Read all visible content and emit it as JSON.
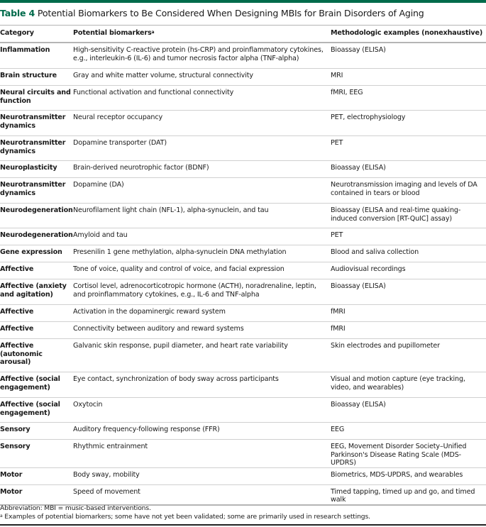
{
  "title": {
    "label": "Table 4",
    "text": "Potential Biomarkers to Be Considered When Designing MBIs for Brain Disorders of Aging"
  },
  "colors": {
    "accent": "#006b4b"
  },
  "headers": {
    "category": "Category",
    "biomarkers": "Potential biomarkers",
    "biomarkers_sup": "a",
    "methods": "Methodologic examples (nonexhaustive)"
  },
  "rows": [
    {
      "category": "Inflammation",
      "biomarker": "High-sensitivity C-reactive protein (hs-CRP) and proinflammatory cytokines, e.g., interleukin-6 (IL-6) and tumor necrosis factor alpha (TNF-alpha)",
      "method": "Bioassay (ELISA)"
    },
    {
      "category": "Brain structure",
      "biomarker": "Gray and white matter volume, structural connectivity",
      "method": "MRI"
    },
    {
      "category": "Neural circuits and function",
      "biomarker": "Functional activation and functional connectivity",
      "method": "fMRI, EEG"
    },
    {
      "category": "Neurotransmitter dynamics",
      "biomarker": "Neural receptor occupancy",
      "method": "PET, electrophysiology"
    },
    {
      "category": "Neurotransmitter dynamics",
      "biomarker": "Dopamine transporter (DAT)",
      "method": "PET"
    },
    {
      "category": "Neuroplasticity",
      "biomarker": "Brain-derived neurotrophic factor (BDNF)",
      "method": "Bioassay (ELISA)"
    },
    {
      "category": "Neurotransmitter dynamics",
      "biomarker": "Dopamine (DA)",
      "method": "Neurotransmission imaging and levels of DA contained in tears or blood"
    },
    {
      "category": "Neurodegeneration",
      "biomarker": "Neurofilament light chain (NFL-1), alpha-synuclein, and tau",
      "method": "Bioassay (ELISA and real-time quaking-induced conversion [RT-QuIC] assay)"
    },
    {
      "category": "Neurodegeneration",
      "biomarker": "Amyloid and tau",
      "method": "PET"
    },
    {
      "category": "Gene expression",
      "biomarker": "Presenilin 1 gene methylation, alpha-synuclein DNA methylation",
      "method": "Blood and saliva collection"
    },
    {
      "category": "Affective",
      "biomarker": "Tone of voice, quality and control of voice, and facial expression",
      "method": "Audiovisual recordings"
    },
    {
      "category": "Affective (anxiety and agitation)",
      "biomarker": "Cortisol level, adrenocorticotropic hormone (ACTH), noradrenaline, leptin, and proinflammatory cytokines, e.g., IL-6 and TNF-alpha",
      "method": "Bioassay (ELISA)"
    },
    {
      "category": "Affective",
      "biomarker": "Activation in the dopaminergic reward system",
      "method": "fMRI"
    },
    {
      "category": "Affective",
      "biomarker": "Connectivity between auditory and reward systems",
      "method": "fMRI"
    },
    {
      "category": "Affective (autonomic arousal)",
      "biomarker": "Galvanic skin response, pupil diameter, and heart rate variability",
      "method": "Skin electrodes and pupillometer"
    },
    {
      "category": "Affective (social engagement)",
      "biomarker": "Eye contact, synchronization of body sway across participants",
      "method": "Visual and motion capture (eye tracking, video, and wearables)"
    },
    {
      "category": "Affective (social engagement)",
      "biomarker": "Oxytocin",
      "method": "Bioassay (ELISA)"
    },
    {
      "category": "Sensory",
      "biomarker": "Auditory frequency-following response (FFR)",
      "method": "EEG"
    },
    {
      "category": "Sensory",
      "biomarker": "Rhythmic entrainment",
      "method": "EEG, Movement Disorder Society–Unified Parkinson's Disease Rating Scale (MDS-UPDRS)"
    },
    {
      "category": "Motor",
      "biomarker": "Body sway, mobility",
      "method": "Biometrics, MDS-UPDRS, and wearables"
    },
    {
      "category": "Motor",
      "biomarker": "Speed of movement",
      "method": "Timed tapping, timed up and go, and timed walk"
    }
  ],
  "notes": {
    "abbreviation": "Abbreviation: MBI = music-based interventions.",
    "footnote_sup": "a",
    "footnote": " Examples of potential biomarkers; some have not yet been validated; some are primarily used in research settings."
  }
}
